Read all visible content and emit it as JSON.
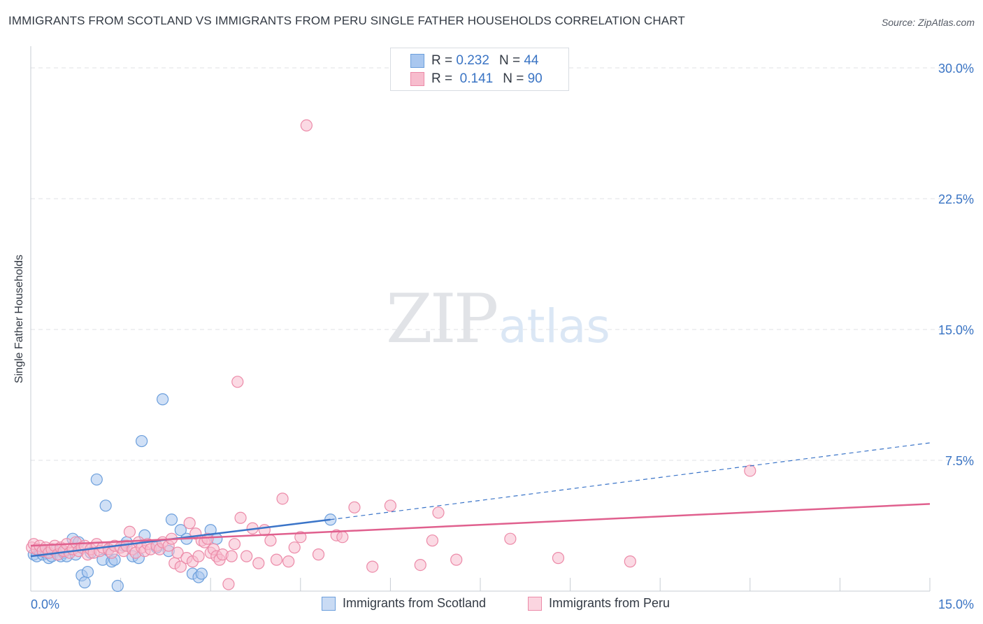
{
  "title": "IMMIGRANTS FROM SCOTLAND VS IMMIGRANTS FROM PERU SINGLE FATHER HOUSEHOLDS CORRELATION CHART",
  "source": "Source: ZipAtlas.com",
  "watermark": {
    "zip": "ZIP",
    "atlas": "atlas"
  },
  "legend": {
    "rows": [
      {
        "r_label": "R =",
        "r_value": "0.232",
        "n_label": "N =",
        "n_value": "44"
      },
      {
        "r_label": "R =",
        "r_value": "0.141",
        "n_label": "N =",
        "n_value": "90"
      }
    ]
  },
  "chart_data": {
    "type": "scatter",
    "title": "IMMIGRANTS FROM SCOTLAND VS IMMIGRANTS FROM PERU SINGLE FATHER HOUSEHOLDS CORRELATION CHART",
    "xlabel": "",
    "ylabel": "Single Father Households",
    "xlim": [
      0,
      15
    ],
    "ylim": [
      0,
      31
    ],
    "x_tick_labels": [
      {
        "value": 0,
        "label": "0.0%"
      },
      {
        "value": 15,
        "label": "15.0%"
      }
    ],
    "y_tick_labels": [
      {
        "value": 7.5,
        "label": "7.5%"
      },
      {
        "value": 15,
        "label": "15.0%"
      },
      {
        "value": 22.5,
        "label": "22.5%"
      },
      {
        "value": 30,
        "label": "30.0%"
      }
    ],
    "grid": true,
    "legend_position": "top-center",
    "series": [
      {
        "name": "Immigrants from Scotland",
        "color": "#a9c7ef",
        "stroke": "#6c9fdc",
        "trend_color": "#3a74c8",
        "trend": {
          "x0": 0,
          "y0": 2.0,
          "x1": 5.0,
          "y1": 4.1,
          "dashed_to_x": 15,
          "dashed_to_y": 8.5
        },
        "points": [
          [
            0.05,
            2.1
          ],
          [
            0.1,
            2.0
          ],
          [
            0.15,
            2.3
          ],
          [
            0.2,
            2.1
          ],
          [
            0.25,
            2.2
          ],
          [
            0.3,
            1.9
          ],
          [
            0.35,
            2.0
          ],
          [
            0.4,
            2.3
          ],
          [
            0.45,
            2.1
          ],
          [
            0.5,
            2.0
          ],
          [
            0.55,
            2.2
          ],
          [
            0.6,
            2.0
          ],
          [
            0.7,
            3.0
          ],
          [
            0.75,
            2.1
          ],
          [
            0.8,
            2.8
          ],
          [
            0.85,
            0.9
          ],
          [
            0.9,
            0.5
          ],
          [
            0.95,
            1.1
          ],
          [
            1.0,
            2.2
          ],
          [
            1.1,
            6.4
          ],
          [
            1.2,
            1.8
          ],
          [
            1.25,
            4.9
          ],
          [
            1.3,
            2.4
          ],
          [
            1.35,
            1.7
          ],
          [
            1.4,
            1.8
          ],
          [
            1.45,
            0.3
          ],
          [
            1.55,
            2.6
          ],
          [
            1.6,
            2.8
          ],
          [
            1.7,
            2.0
          ],
          [
            1.8,
            1.9
          ],
          [
            1.85,
            8.6
          ],
          [
            1.9,
            3.2
          ],
          [
            2.1,
            2.5
          ],
          [
            2.2,
            11.0
          ],
          [
            2.3,
            2.3
          ],
          [
            2.35,
            4.1
          ],
          [
            2.5,
            3.5
          ],
          [
            2.6,
            3.0
          ],
          [
            2.7,
            1.0
          ],
          [
            2.8,
            0.8
          ],
          [
            2.85,
            1.0
          ],
          [
            3.0,
            3.5
          ],
          [
            3.1,
            3.0
          ],
          [
            5.0,
            4.1
          ]
        ]
      },
      {
        "name": "Immigrants from Peru",
        "color": "#f7bccd",
        "stroke": "#ec8aa8",
        "trend_color": "#e0608e",
        "trend": {
          "x0": 0,
          "y0": 2.6,
          "x1": 15,
          "y1": 5.0
        },
        "points": [
          [
            0.02,
            2.5
          ],
          [
            0.05,
            2.7
          ],
          [
            0.1,
            2.4
          ],
          [
            0.15,
            2.6
          ],
          [
            0.2,
            2.3
          ],
          [
            0.25,
            2.5
          ],
          [
            0.3,
            2.2
          ],
          [
            0.35,
            2.4
          ],
          [
            0.4,
            2.6
          ],
          [
            0.45,
            2.1
          ],
          [
            0.5,
            2.5
          ],
          [
            0.55,
            2.3
          ],
          [
            0.6,
            2.7
          ],
          [
            0.65,
            2.2
          ],
          [
            0.7,
            2.4
          ],
          [
            0.75,
            2.8
          ],
          [
            0.8,
            2.3
          ],
          [
            0.85,
            2.5
          ],
          [
            0.9,
            2.6
          ],
          [
            0.95,
            2.1
          ],
          [
            1.0,
            2.4
          ],
          [
            1.05,
            2.2
          ],
          [
            1.1,
            2.7
          ],
          [
            1.15,
            2.3
          ],
          [
            1.2,
            2.5
          ],
          [
            1.3,
            2.4
          ],
          [
            1.35,
            2.2
          ],
          [
            1.4,
            2.6
          ],
          [
            1.5,
            2.5
          ],
          [
            1.55,
            2.3
          ],
          [
            1.6,
            2.6
          ],
          [
            1.65,
            3.4
          ],
          [
            1.7,
            2.4
          ],
          [
            1.75,
            2.2
          ],
          [
            1.8,
            2.8
          ],
          [
            1.85,
            2.5
          ],
          [
            1.9,
            2.3
          ],
          [
            1.95,
            2.7
          ],
          [
            2.0,
            2.4
          ],
          [
            2.1,
            2.6
          ],
          [
            2.15,
            2.4
          ],
          [
            2.2,
            2.8
          ],
          [
            2.3,
            2.6
          ],
          [
            2.35,
            3.0
          ],
          [
            2.4,
            1.6
          ],
          [
            2.45,
            2.2
          ],
          [
            2.5,
            1.4
          ],
          [
            2.6,
            1.9
          ],
          [
            2.65,
            3.9
          ],
          [
            2.7,
            1.7
          ],
          [
            2.75,
            3.3
          ],
          [
            2.8,
            2.0
          ],
          [
            2.85,
            2.9
          ],
          [
            2.9,
            2.8
          ],
          [
            2.95,
            3.0
          ],
          [
            3.0,
            2.2
          ],
          [
            3.05,
            2.4
          ],
          [
            3.1,
            2.0
          ],
          [
            3.15,
            1.8
          ],
          [
            3.2,
            2.1
          ],
          [
            3.3,
            0.4
          ],
          [
            3.35,
            2.0
          ],
          [
            3.4,
            2.7
          ],
          [
            3.45,
            12.0
          ],
          [
            3.5,
            4.2
          ],
          [
            3.6,
            2.0
          ],
          [
            3.7,
            3.6
          ],
          [
            3.8,
            1.6
          ],
          [
            3.9,
            3.5
          ],
          [
            4.0,
            2.9
          ],
          [
            4.1,
            1.8
          ],
          [
            4.2,
            5.3
          ],
          [
            4.3,
            1.7
          ],
          [
            4.4,
            2.5
          ],
          [
            4.5,
            3.1
          ],
          [
            4.6,
            26.7
          ],
          [
            4.8,
            2.1
          ],
          [
            5.1,
            3.2
          ],
          [
            5.4,
            4.8
          ],
          [
            5.7,
            1.4
          ],
          [
            6.0,
            4.9
          ],
          [
            6.5,
            1.5
          ],
          [
            6.8,
            4.5
          ],
          [
            7.1,
            1.8
          ],
          [
            8.0,
            3.0
          ],
          [
            8.8,
            1.9
          ],
          [
            10.0,
            1.7
          ],
          [
            12.0,
            6.9
          ],
          [
            6.7,
            2.9
          ],
          [
            5.2,
            3.1
          ]
        ]
      }
    ]
  }
}
